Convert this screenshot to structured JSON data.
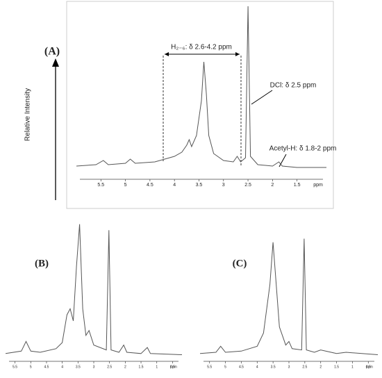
{
  "chart_data": [
    {
      "type": "line",
      "panel_label": "(A)",
      "ylabel": "Relative Intensity",
      "xlabel": "ppm",
      "color": "#555555",
      "xlim": [
        6.0,
        0.9
      ],
      "ylim": [
        0,
        120
      ],
      "xticks": [
        5.5,
        5.0,
        4.5,
        4.0,
        3.5,
        3.0,
        2.5,
        2.0,
        1.5
      ],
      "x": [
        6.0,
        5.6,
        5.45,
        5.35,
        5.0,
        4.9,
        4.8,
        4.4,
        4.2,
        4.0,
        3.85,
        3.75,
        3.7,
        3.65,
        3.55,
        3.45,
        3.4,
        3.35,
        3.3,
        3.2,
        3.0,
        2.8,
        2.72,
        2.65,
        2.55,
        2.5,
        2.45,
        2.3,
        2.0,
        1.87,
        1.8,
        1.5,
        0.9
      ],
      "values": [
        3,
        4,
        7,
        4,
        5,
        8,
        5,
        6,
        8,
        10,
        13,
        18,
        22,
        17,
        25,
        50,
        78,
        55,
        25,
        12,
        7,
        6,
        10,
        6,
        9,
        118,
        10,
        4,
        3,
        6,
        3,
        2,
        2
      ],
      "annotations": [
        "H₂₋₆: δ 2.6-4.2 ppm",
        "DCl: δ 2.5 ppm",
        "Acetyl-H: δ 1.8-2 ppm"
      ]
    },
    {
      "type": "line",
      "panel_label": "(B)",
      "xlabel": "ppm",
      "color": "#555555",
      "xlim": [
        5.8,
        0.2
      ],
      "ylim": [
        0,
        100
      ],
      "xticks": [
        5.5,
        5.0,
        4.5,
        4.0,
        3.5,
        3.0,
        2.5,
        2.0,
        1.5,
        1.0,
        0.5
      ],
      "x": [
        5.8,
        5.3,
        5.15,
        5.0,
        4.7,
        4.2,
        4.0,
        3.85,
        3.75,
        3.65,
        3.55,
        3.45,
        3.35,
        3.25,
        3.15,
        3.0,
        2.6,
        2.52,
        2.45,
        2.2,
        2.05,
        1.95,
        1.5,
        1.3,
        1.2,
        0.2
      ],
      "values": [
        3,
        5,
        13,
        5,
        4,
        7,
        12,
        35,
        40,
        30,
        75,
        110,
        40,
        18,
        22,
        10,
        6,
        105,
        6,
        4,
        10,
        4,
        3,
        8,
        3,
        2
      ]
    },
    {
      "type": "line",
      "panel_label": "(C)",
      "xlabel": "ppm",
      "color": "#555555",
      "xlim": [
        5.8,
        0.2
      ],
      "ylim": [
        0,
        100
      ],
      "xticks": [
        5.5,
        5.0,
        4.5,
        4.0,
        3.5,
        3.0,
        2.5,
        2.0,
        1.5,
        1.0,
        0.5
      ],
      "x": [
        5.8,
        5.3,
        5.15,
        5.0,
        4.5,
        4.0,
        3.8,
        3.6,
        3.5,
        3.4,
        3.3,
        3.1,
        3.0,
        2.9,
        2.6,
        2.52,
        2.45,
        2.2,
        2.0,
        1.5,
        1.2,
        0.2
      ],
      "values": [
        3,
        4,
        9,
        4,
        5,
        9,
        20,
        60,
        95,
        60,
        25,
        10,
        13,
        7,
        6,
        98,
        6,
        4,
        6,
        3,
        4,
        2
      ]
    }
  ]
}
